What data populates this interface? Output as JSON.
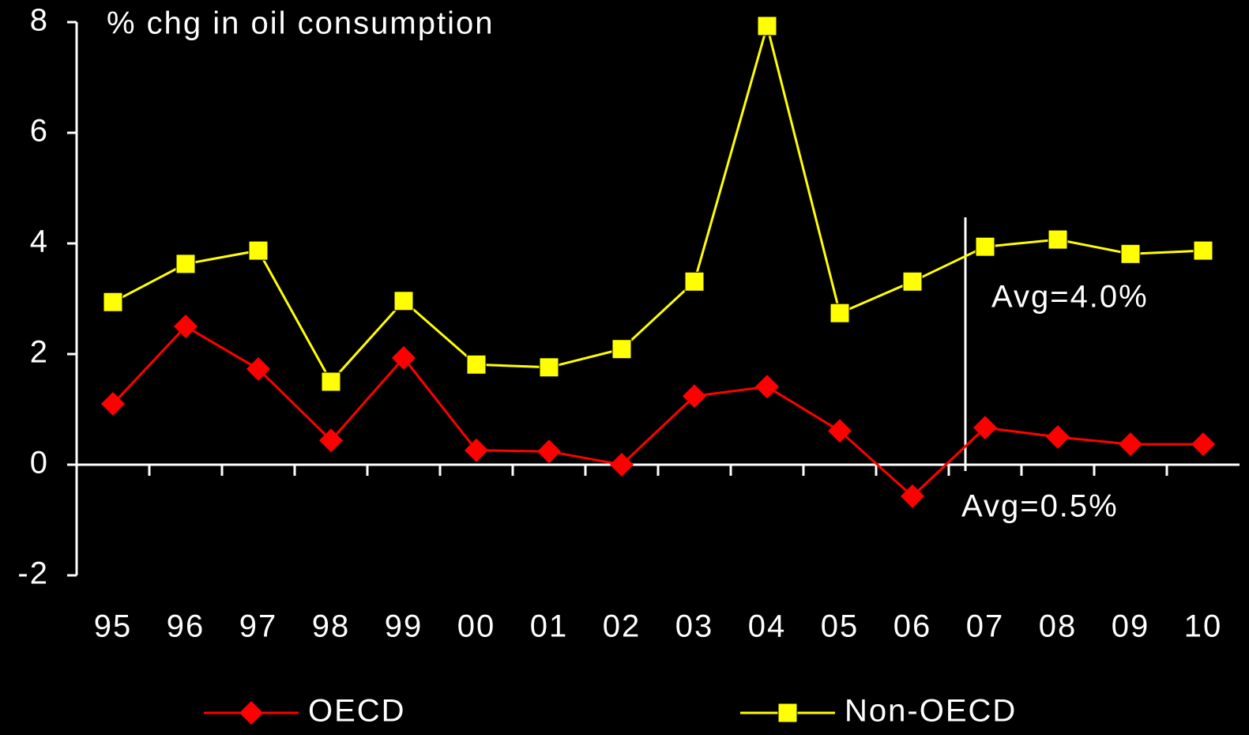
{
  "chart_data": {
    "type": "line",
    "title": "% chg in oil consumption",
    "categories": [
      "95",
      "96",
      "97",
      "98",
      "99",
      "00",
      "01",
      "02",
      "03",
      "04",
      "05",
      "06",
      "07",
      "08",
      "09",
      "10"
    ],
    "series": [
      {
        "name": "OECD",
        "color": "#ff0000",
        "marker": "diamond",
        "values": [
          1.1,
          2.5,
          1.73,
          0.44,
          1.93,
          0.26,
          0.24,
          0,
          1.24,
          1.41,
          0.61,
          -0.57,
          0.67,
          0.5,
          0.37,
          0.37
        ]
      },
      {
        "name": "Non-OECD",
        "color": "#ffff00",
        "marker": "square",
        "values": [
          2.94,
          3.63,
          3.87,
          1.5,
          2.96,
          1.81,
          1.76,
          2.09,
          3.31,
          7.93,
          2.74,
          3.31,
          3.94,
          4.07,
          3.81,
          3.87
        ]
      }
    ],
    "ylim": [
      -2,
      8
    ],
    "yticks": [
      -2,
      0,
      2,
      4,
      6,
      8
    ],
    "annotations": [
      "Avg=4.0%",
      "Avg=0.5%"
    ]
  }
}
